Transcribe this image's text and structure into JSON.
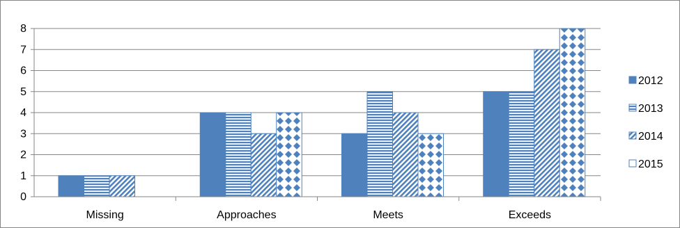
{
  "chart_data": {
    "type": "bar",
    "categories": [
      "Missing",
      "Approaches",
      "Meets",
      "Exceeds"
    ],
    "series": [
      {
        "name": "2012",
        "values": [
          1,
          4,
          3,
          5
        ],
        "color": "#4f81bd",
        "pattern": "solid"
      },
      {
        "name": "2013",
        "values": [
          1,
          4,
          5,
          5
        ],
        "color": "#4f81bd",
        "pattern": "horizontal-stripes"
      },
      {
        "name": "2014",
        "values": [
          1,
          3,
          4,
          7
        ],
        "color": "#4f81bd",
        "pattern": "diagonal-stripes"
      },
      {
        "name": "2015",
        "values": [
          0,
          4,
          3,
          8
        ],
        "color": "#4f81bd",
        "pattern": "diamonds"
      }
    ],
    "ylim": [
      0,
      8
    ],
    "yticks": [
      "0",
      "1",
      "2",
      "3",
      "4",
      "5",
      "6",
      "7",
      "8"
    ],
    "grid": true,
    "legend": "right"
  }
}
